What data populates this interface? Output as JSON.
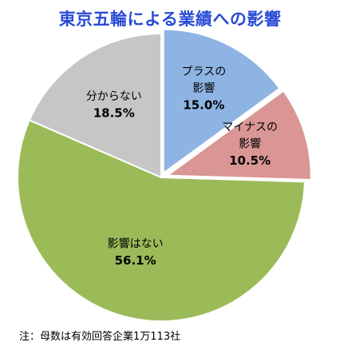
{
  "title": "東京五輪による業績への影響",
  "footnote": "注：母数は有効回答企業1万113社",
  "chart_data": {
    "type": "pie",
    "start": "12 o'clock",
    "direction": "clockwise",
    "slices": [
      {
        "label_lines": [
          "プラスの",
          "影響"
        ],
        "value": 15.0,
        "value_label": "15.0%",
        "color": "#8eb4e3"
      },
      {
        "label_lines": [
          "マイナスの",
          "影響"
        ],
        "value": 10.5,
        "value_label": "10.5%",
        "color": "#d99694"
      },
      {
        "label_lines": [
          "影響はない"
        ],
        "value": 56.1,
        "value_label": "56.1%",
        "color": "#9bbb59"
      },
      {
        "label_lines": [
          "分からない"
        ],
        "value": 18.5,
        "value_label": "18.5%",
        "color": "#c6c6c6"
      }
    ]
  }
}
